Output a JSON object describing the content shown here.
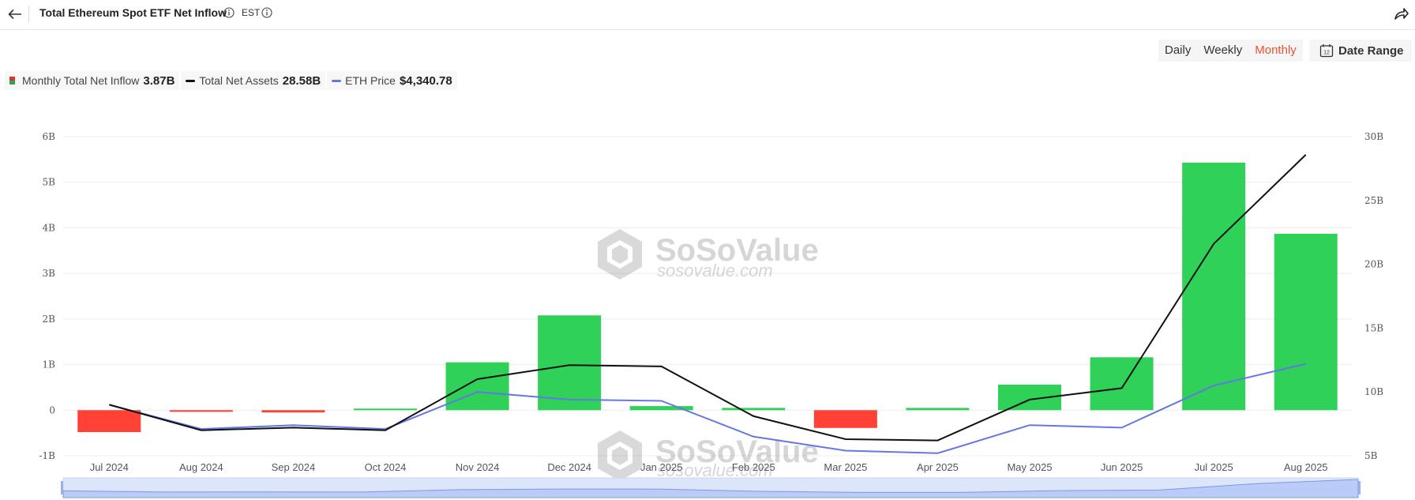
{
  "header": {
    "title": "Total Ethereum Spot ETF Net Inflow",
    "timezone": "EST"
  },
  "tabs": [
    {
      "label": "Daily",
      "active": false
    },
    {
      "label": "Weekly",
      "active": false
    },
    {
      "label": "Monthly",
      "active": true
    }
  ],
  "date_range": {
    "label": "Date Range",
    "icon": "calendar-icon",
    "icon_text": "12"
  },
  "legend": [
    {
      "name": "Monthly Total Net Inflow",
      "value": "3.87B",
      "swatch": "bar"
    },
    {
      "name": "Total Net Assets",
      "value": "28.58B",
      "swatch": "line",
      "color": "#111111"
    },
    {
      "name": "ETH Price",
      "value": "$4,340.78",
      "swatch": "line",
      "color": "#6378e0"
    }
  ],
  "watermark": {
    "brand": "SoSoValue",
    "domain": "sosovalue.com"
  },
  "colors": {
    "positive": "#30d158",
    "negative": "#ff4136",
    "assets_line": "#111111",
    "price_line": "#6378e0",
    "active_tab": "#e8542f"
  },
  "chart_data": {
    "type": "bar",
    "categories": [
      "Jul 2024",
      "Aug 2024",
      "Sep 2024",
      "Oct 2024",
      "Nov 2024",
      "Dec 2024",
      "Jan 2025",
      "Feb 2025",
      "Mar 2025",
      "Apr 2025",
      "May 2025",
      "Jun 2025",
      "Jul 2025",
      "Aug 2025"
    ],
    "left_axis": {
      "ticks": [
        "6B",
        "5B",
        "4B",
        "3B",
        "2B",
        "1B",
        "0",
        "-1B"
      ],
      "range": [
        -1,
        6
      ]
    },
    "right_axis": {
      "ticks": [
        "30B",
        "25B",
        "20B",
        "15B",
        "10B",
        "5B"
      ],
      "range": [
        5,
        30
      ]
    },
    "series": [
      {
        "name": "Monthly Total Net Inflow",
        "type": "bar",
        "axis": "left",
        "unit": "B",
        "values": [
          -0.48,
          -0.005,
          -0.05,
          0.03,
          1.05,
          2.08,
          0.09,
          0.05,
          -0.39,
          0.05,
          0.56,
          1.16,
          5.43,
          3.87
        ]
      },
      {
        "name": "Total Net Assets",
        "type": "line",
        "axis": "right",
        "unit": "B",
        "values": [
          9.0,
          7.0,
          7.2,
          7.0,
          11.0,
          12.1,
          12.0,
          8.1,
          6.3,
          6.2,
          9.4,
          10.3,
          21.6,
          28.58
        ]
      },
      {
        "name": "ETH Price",
        "type": "line",
        "axis": "right",
        "unit": "B (scaled)",
        "values": [
          9.0,
          7.1,
          7.4,
          7.1,
          10.0,
          9.4,
          9.3,
          6.5,
          5.4,
          5.2,
          7.4,
          7.2,
          10.5,
          12.2
        ]
      }
    ],
    "navigator": {
      "values": [
        0.9,
        0.7,
        0.72,
        0.7,
        1.1,
        1.21,
        1.2,
        0.81,
        0.63,
        0.62,
        0.94,
        1.03,
        2.16,
        2.858
      ]
    }
  }
}
